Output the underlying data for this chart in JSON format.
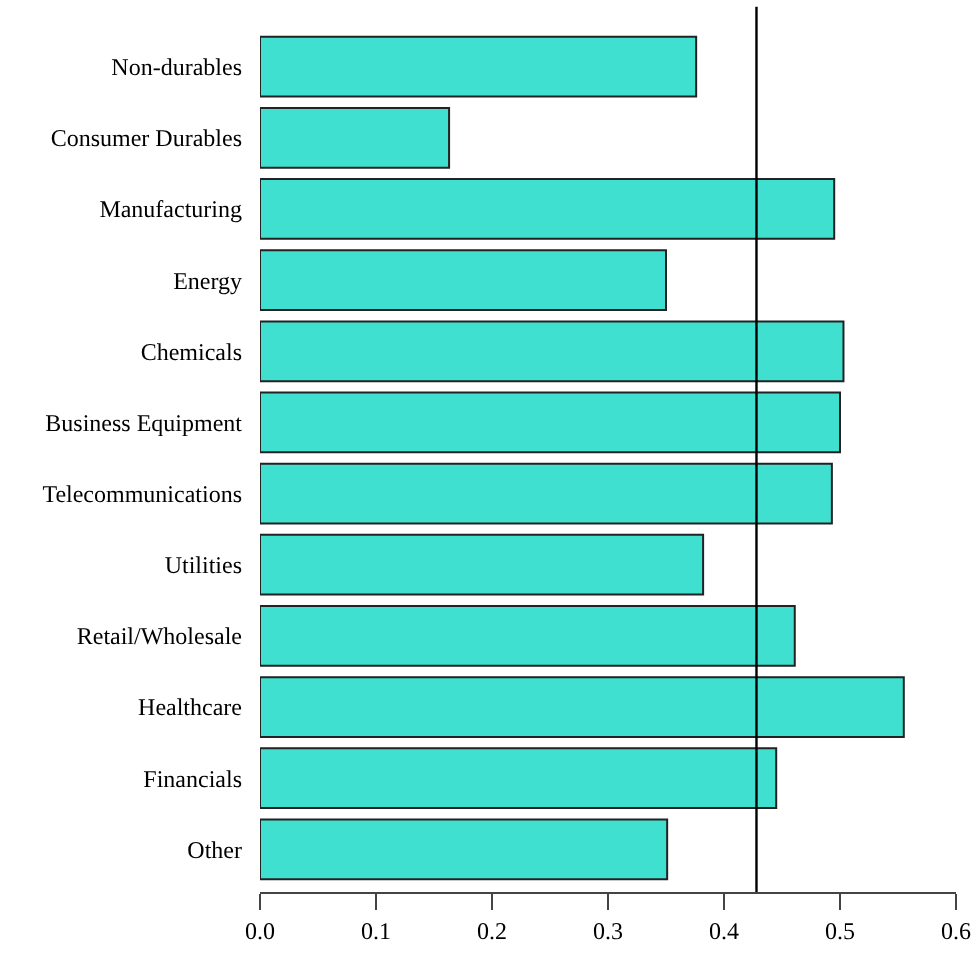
{
  "chart_data": {
    "type": "bar",
    "orientation": "horizontal",
    "categories": [
      "Non-durables",
      "Consumer Durables",
      "Manufacturing",
      "Energy",
      "Chemicals",
      "Business Equipment",
      "Telecommunications",
      "Utilities",
      "Retail/Wholesale",
      "Healthcare",
      "Financials",
      "Other"
    ],
    "values": [
      0.376,
      0.163,
      0.495,
      0.35,
      0.503,
      0.5,
      0.493,
      0.382,
      0.461,
      0.555,
      0.445,
      0.351
    ],
    "color": "#40e0d0",
    "xlim": [
      0,
      0.6
    ],
    "xticks": [
      {
        "value": 0,
        "label": "0.0"
      },
      0.1,
      0.2,
      0.3,
      0.4,
      0.5,
      0.6
    ],
    "ref_lines": [
      {
        "axis": "x",
        "value": 0.428,
        "color": "#000000"
      }
    ]
  }
}
